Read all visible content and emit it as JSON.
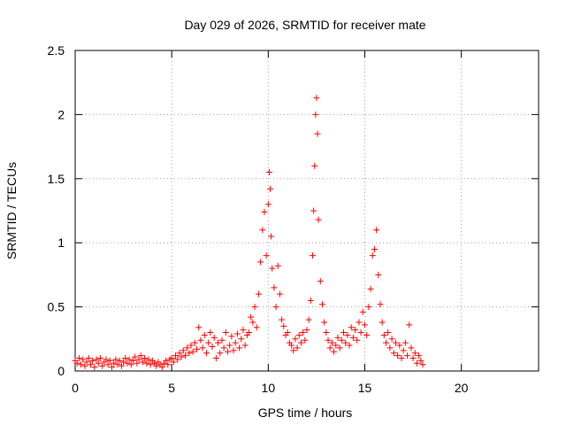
{
  "chart_data": {
    "type": "scatter",
    "title": "Day 029 of 2026, SRMTID for receiver mate",
    "xlabel": "GPS time / hours",
    "ylabel": "SRMTID / TECUs",
    "xlim": [
      0,
      24
    ],
    "ylim": [
      0,
      2.5
    ],
    "xticks": [
      0,
      5,
      10,
      15,
      20
    ],
    "yticks": [
      0,
      0.5,
      1,
      1.5,
      2,
      2.5
    ],
    "xtick_labels": [
      "0",
      "5",
      "10",
      "15",
      "20"
    ],
    "ytick_labels": [
      "0",
      "0.5",
      "1",
      "1.5",
      "2",
      "2.5"
    ],
    "grid": true,
    "marker": "plus",
    "color": "#ff0000",
    "series": [
      {
        "values": [
          [
            0.0,
            0.08
          ],
          [
            0.1,
            0.06
          ],
          [
            0.2,
            0.1
          ],
          [
            0.3,
            0.05
          ],
          [
            0.4,
            0.09
          ],
          [
            0.5,
            0.04
          ],
          [
            0.6,
            0.07
          ],
          [
            0.7,
            0.1
          ],
          [
            0.8,
            0.05
          ],
          [
            0.9,
            0.08
          ],
          [
            1.0,
            0.03
          ],
          [
            1.1,
            0.09
          ],
          [
            1.2,
            0.06
          ],
          [
            1.3,
            0.1
          ],
          [
            1.4,
            0.04
          ],
          [
            1.5,
            0.07
          ],
          [
            1.6,
            0.09
          ],
          [
            1.7,
            0.05
          ],
          [
            1.8,
            0.08
          ],
          [
            1.9,
            0.03
          ],
          [
            2.0,
            0.06
          ],
          [
            2.1,
            0.09
          ],
          [
            2.2,
            0.05
          ],
          [
            2.3,
            0.08
          ],
          [
            2.4,
            0.04
          ],
          [
            2.5,
            0.07
          ],
          [
            2.6,
            0.1
          ],
          [
            2.7,
            0.06
          ],
          [
            2.8,
            0.09
          ],
          [
            2.9,
            0.05
          ],
          [
            3.0,
            0.08
          ],
          [
            3.1,
            0.11
          ],
          [
            3.2,
            0.06
          ],
          [
            3.3,
            0.09
          ],
          [
            3.4,
            0.12
          ],
          [
            3.5,
            0.07
          ],
          [
            3.6,
            0.1
          ],
          [
            3.7,
            0.06
          ],
          [
            3.8,
            0.09
          ],
          [
            3.9,
            0.05
          ],
          [
            4.0,
            0.08
          ],
          [
            4.1,
            0.06
          ],
          [
            4.2,
            0.04
          ],
          [
            4.3,
            0.07
          ],
          [
            4.4,
            0.05
          ],
          [
            4.5,
            0.03
          ],
          [
            4.6,
            0.06
          ],
          [
            4.7,
            0.08
          ],
          [
            4.8,
            0.05
          ],
          [
            4.9,
            0.09
          ],
          [
            5.0,
            0.1
          ],
          [
            5.1,
            0.07
          ],
          [
            5.2,
            0.12
          ],
          [
            5.3,
            0.09
          ],
          [
            5.4,
            0.14
          ],
          [
            5.5,
            0.11
          ],
          [
            5.6,
            0.16
          ],
          [
            5.7,
            0.12
          ],
          [
            5.8,
            0.18
          ],
          [
            5.9,
            0.14
          ],
          [
            6.0,
            0.2
          ],
          [
            6.1,
            0.15
          ],
          [
            6.2,
            0.22
          ],
          [
            6.3,
            0.17
          ],
          [
            6.4,
            0.34
          ],
          [
            6.5,
            0.24
          ],
          [
            6.6,
            0.18
          ],
          [
            6.7,
            0.28
          ],
          [
            6.8,
            0.14
          ],
          [
            6.9,
            0.22
          ],
          [
            7.0,
            0.3
          ],
          [
            7.1,
            0.19
          ],
          [
            7.2,
            0.26
          ],
          [
            7.3,
            0.1
          ],
          [
            7.4,
            0.22
          ],
          [
            7.5,
            0.14
          ],
          [
            7.6,
            0.24
          ],
          [
            7.7,
            0.18
          ],
          [
            7.8,
            0.3
          ],
          [
            7.9,
            0.15
          ],
          [
            8.0,
            0.2
          ],
          [
            8.1,
            0.27
          ],
          [
            8.2,
            0.16
          ],
          [
            8.3,
            0.22
          ],
          [
            8.4,
            0.29
          ],
          [
            8.5,
            0.18
          ],
          [
            8.6,
            0.25
          ],
          [
            8.7,
            0.32
          ],
          [
            8.8,
            0.2
          ],
          [
            8.9,
            0.28
          ],
          [
            9.0,
            0.3
          ],
          [
            9.1,
            0.42
          ],
          [
            9.2,
            0.38
          ],
          [
            9.3,
            0.5
          ],
          [
            9.4,
            0.34
          ],
          [
            9.5,
            0.6
          ],
          [
            9.6,
            0.85
          ],
          [
            9.7,
            1.1
          ],
          [
            9.8,
            1.24
          ],
          [
            9.9,
            0.9
          ],
          [
            10.0,
            1.3
          ],
          [
            10.05,
            1.55
          ],
          [
            10.1,
            1.42
          ],
          [
            10.15,
            1.05
          ],
          [
            10.2,
            0.8
          ],
          [
            10.3,
            0.65
          ],
          [
            10.4,
            0.5
          ],
          [
            10.5,
            0.82
          ],
          [
            10.6,
            0.6
          ],
          [
            10.7,
            0.4
          ],
          [
            10.8,
            0.35
          ],
          [
            10.9,
            0.28
          ],
          [
            11.0,
            0.3
          ],
          [
            11.1,
            0.22
          ],
          [
            11.2,
            0.2
          ],
          [
            11.3,
            0.16
          ],
          [
            11.4,
            0.25
          ],
          [
            11.5,
            0.18
          ],
          [
            11.6,
            0.28
          ],
          [
            11.7,
            0.22
          ],
          [
            11.8,
            0.3
          ],
          [
            11.9,
            0.24
          ],
          [
            12.0,
            0.32
          ],
          [
            12.1,
            0.4
          ],
          [
            12.2,
            0.55
          ],
          [
            12.3,
            0.9
          ],
          [
            12.35,
            1.25
          ],
          [
            12.4,
            1.6
          ],
          [
            12.45,
            2.0
          ],
          [
            12.5,
            2.13
          ],
          [
            12.55,
            1.85
          ],
          [
            12.6,
            1.18
          ],
          [
            12.7,
            0.7
          ],
          [
            12.8,
            0.52
          ],
          [
            12.9,
            0.38
          ],
          [
            13.0,
            0.3
          ],
          [
            13.1,
            0.24
          ],
          [
            13.2,
            0.18
          ],
          [
            13.3,
            0.22
          ],
          [
            13.4,
            0.15
          ],
          [
            13.5,
            0.2
          ],
          [
            13.6,
            0.26
          ],
          [
            13.7,
            0.18
          ],
          [
            13.8,
            0.24
          ],
          [
            13.9,
            0.3
          ],
          [
            14.0,
            0.22
          ],
          [
            14.1,
            0.28
          ],
          [
            14.2,
            0.2
          ],
          [
            14.3,
            0.34
          ],
          [
            14.4,
            0.26
          ],
          [
            14.5,
            0.32
          ],
          [
            14.6,
            0.24
          ],
          [
            14.7,
            0.38
          ],
          [
            14.8,
            0.3
          ],
          [
            14.9,
            0.46
          ],
          [
            15.0,
            0.36
          ],
          [
            15.1,
            0.28
          ],
          [
            15.2,
            0.5
          ],
          [
            15.3,
            0.64
          ],
          [
            15.4,
            0.9
          ],
          [
            15.5,
            0.95
          ],
          [
            15.6,
            1.1
          ],
          [
            15.7,
            0.75
          ],
          [
            15.8,
            0.52
          ],
          [
            15.9,
            0.38
          ],
          [
            16.0,
            0.28
          ],
          [
            16.1,
            0.22
          ],
          [
            16.2,
            0.3
          ],
          [
            16.3,
            0.18
          ],
          [
            16.4,
            0.25
          ],
          [
            16.5,
            0.14
          ],
          [
            16.6,
            0.22
          ],
          [
            16.7,
            0.12
          ],
          [
            16.8,
            0.2
          ],
          [
            16.9,
            0.1
          ],
          [
            17.0,
            0.16
          ],
          [
            17.1,
            0.22
          ],
          [
            17.2,
            0.12
          ],
          [
            17.3,
            0.36
          ],
          [
            17.4,
            0.18
          ],
          [
            17.5,
            0.1
          ],
          [
            17.6,
            0.14
          ],
          [
            17.7,
            0.06
          ],
          [
            17.8,
            0.12
          ],
          [
            17.9,
            0.08
          ],
          [
            18.0,
            0.05
          ]
        ]
      }
    ]
  }
}
